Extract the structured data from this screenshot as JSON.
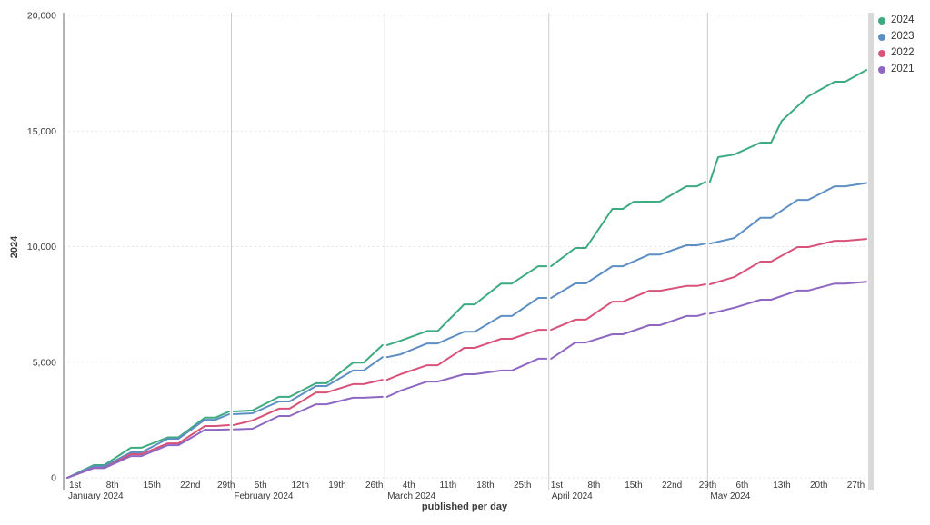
{
  "chart_data": {
    "type": "line",
    "title": "",
    "xlabel": "published per day",
    "ylabel": "2024",
    "ylim": [
      0,
      20000
    ],
    "xlim_days": [
      0,
      151
    ],
    "grid": "horizontal-dashed",
    "legend_position": "top-right",
    "colors": {
      "axis_line": "#9b9b9b",
      "gridline": "#e5e5e5",
      "month_line": "#cccccc",
      "end_bar": "#d9d9d9",
      "tick_text": "#3a3a3a"
    },
    "y_ticks": [
      {
        "value": 0,
        "label": "0"
      },
      {
        "value": 5000,
        "label": "5,000"
      },
      {
        "value": 10000,
        "label": "10,000"
      },
      {
        "value": 15000,
        "label": "15,000"
      },
      {
        "value": 20000,
        "label": "20,000"
      }
    ],
    "x_ticks": [
      {
        "day": 0,
        "label": "1st"
      },
      {
        "day": 7,
        "label": "8th"
      },
      {
        "day": 14,
        "label": "15th"
      },
      {
        "day": 21,
        "label": "22nd"
      },
      {
        "day": 28,
        "label": "29th"
      },
      {
        "day": 35,
        "label": "5th"
      },
      {
        "day": 42,
        "label": "12th"
      },
      {
        "day": 49,
        "label": "19th"
      },
      {
        "day": 56,
        "label": "26th"
      },
      {
        "day": 63,
        "label": "4th"
      },
      {
        "day": 70,
        "label": "11th"
      },
      {
        "day": 77,
        "label": "18th"
      },
      {
        "day": 84,
        "label": "25th"
      },
      {
        "day": 91,
        "label": "1st"
      },
      {
        "day": 98,
        "label": "8th"
      },
      {
        "day": 105,
        "label": "15th"
      },
      {
        "day": 112,
        "label": "22nd"
      },
      {
        "day": 119,
        "label": "29th"
      },
      {
        "day": 126,
        "label": "6th"
      },
      {
        "day": 133,
        "label": "13th"
      },
      {
        "day": 140,
        "label": "20th"
      },
      {
        "day": 147,
        "label": "27th"
      }
    ],
    "months": [
      {
        "start_day": 0,
        "label": "January 2024"
      },
      {
        "start_day": 31,
        "label": "February 2024"
      },
      {
        "start_day": 60,
        "label": "March 2024"
      },
      {
        "start_day": 91,
        "label": "April 2024"
      },
      {
        "start_day": 121,
        "label": "May 2024"
      }
    ],
    "month_boundary_days": [
      31,
      60,
      91,
      121
    ],
    "series": [
      {
        "name": "2024",
        "color": "#3daa80",
        "points": [
          [
            0,
            0
          ],
          [
            7,
            550
          ],
          [
            14,
            1300
          ],
          [
            21,
            1750
          ],
          [
            28,
            2600
          ],
          [
            31,
            2870
          ],
          [
            35,
            2910
          ],
          [
            42,
            3500
          ],
          [
            49,
            4090
          ],
          [
            56,
            4980
          ],
          [
            60,
            5740
          ],
          [
            63,
            5930
          ],
          [
            70,
            6350
          ],
          [
            77,
            7500
          ],
          [
            84,
            8400
          ],
          [
            91,
            9150
          ],
          [
            98,
            9940
          ],
          [
            105,
            11630
          ],
          [
            107,
            11940
          ],
          [
            112,
            11950
          ],
          [
            119,
            12610
          ],
          [
            121,
            12800
          ],
          [
            123,
            13870
          ],
          [
            126,
            13980
          ],
          [
            133,
            14500
          ],
          [
            135,
            15440
          ],
          [
            140,
            16500
          ],
          [
            147,
            17130
          ],
          [
            151,
            17640
          ]
        ]
      },
      {
        "name": "2023",
        "color": "#5d8ec4",
        "points": [
          [
            0,
            0
          ],
          [
            7,
            500
          ],
          [
            14,
            1100
          ],
          [
            21,
            1690
          ],
          [
            28,
            2510
          ],
          [
            31,
            2750
          ],
          [
            35,
            2790
          ],
          [
            42,
            3300
          ],
          [
            49,
            3970
          ],
          [
            56,
            4640
          ],
          [
            60,
            5220
          ],
          [
            63,
            5340
          ],
          [
            70,
            5810
          ],
          [
            77,
            6320
          ],
          [
            84,
            7000
          ],
          [
            91,
            7780
          ],
          [
            98,
            8410
          ],
          [
            105,
            9150
          ],
          [
            112,
            9660
          ],
          [
            119,
            10060
          ],
          [
            121,
            10130
          ],
          [
            126,
            10370
          ],
          [
            133,
            11250
          ],
          [
            140,
            12020
          ],
          [
            147,
            12610
          ],
          [
            151,
            12750
          ]
        ]
      },
      {
        "name": "2022",
        "color": "#d95278",
        "points": [
          [
            0,
            0
          ],
          [
            7,
            430
          ],
          [
            14,
            1020
          ],
          [
            21,
            1490
          ],
          [
            28,
            2240
          ],
          [
            31,
            2280
          ],
          [
            35,
            2480
          ],
          [
            42,
            2990
          ],
          [
            49,
            3690
          ],
          [
            56,
            4050
          ],
          [
            60,
            4240
          ],
          [
            63,
            4480
          ],
          [
            70,
            4870
          ],
          [
            77,
            5620
          ],
          [
            84,
            6010
          ],
          [
            91,
            6400
          ],
          [
            98,
            6840
          ],
          [
            105,
            7620
          ],
          [
            112,
            8090
          ],
          [
            119,
            8300
          ],
          [
            121,
            8370
          ],
          [
            126,
            8680
          ],
          [
            133,
            9350
          ],
          [
            140,
            9980
          ],
          [
            147,
            10250
          ],
          [
            151,
            10330
          ]
        ]
      },
      {
        "name": "2021",
        "color": "#8e67c2",
        "points": [
          [
            0,
            0
          ],
          [
            7,
            420
          ],
          [
            14,
            940
          ],
          [
            21,
            1410
          ],
          [
            28,
            2080
          ],
          [
            31,
            2090
          ],
          [
            35,
            2120
          ],
          [
            42,
            2670
          ],
          [
            49,
            3180
          ],
          [
            56,
            3460
          ],
          [
            60,
            3500
          ],
          [
            63,
            3770
          ],
          [
            70,
            4160
          ],
          [
            77,
            4480
          ],
          [
            84,
            4640
          ],
          [
            91,
            5150
          ],
          [
            98,
            5850
          ],
          [
            105,
            6210
          ],
          [
            112,
            6600
          ],
          [
            119,
            7000
          ],
          [
            121,
            7100
          ],
          [
            126,
            7350
          ],
          [
            133,
            7700
          ],
          [
            140,
            8100
          ],
          [
            147,
            8400
          ],
          [
            151,
            8480
          ]
        ]
      }
    ]
  }
}
